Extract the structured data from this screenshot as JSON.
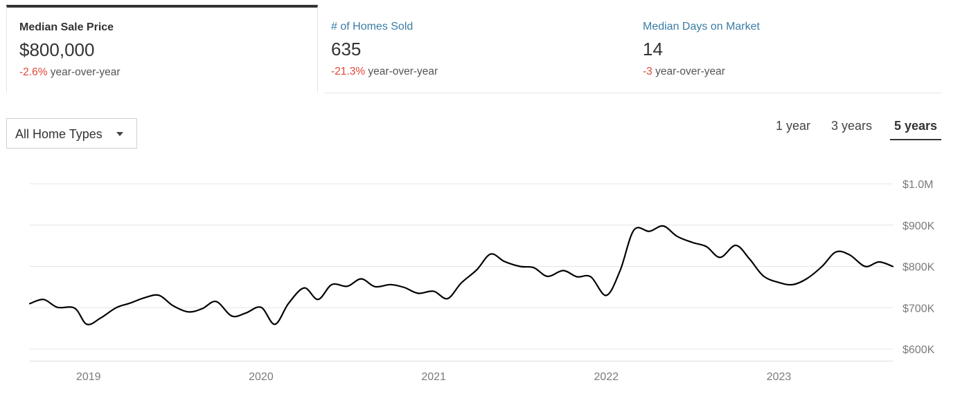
{
  "tabs": [
    {
      "label": "Median Sale Price",
      "value": "$800,000",
      "change": "-2.6%",
      "change_suffix": " year-over-year",
      "active": true
    },
    {
      "label": "# of Homes Sold",
      "value": "635",
      "change": "-21.3%",
      "change_suffix": " year-over-year",
      "active": false
    },
    {
      "label": "Median Days on Market",
      "value": "14",
      "change": "-3",
      "change_suffix": " year-over-year",
      "active": false
    }
  ],
  "filter": {
    "selected": "All Home Types"
  },
  "ranges": {
    "one_year": "1 year",
    "three_years": "3 years",
    "five_years": "5 years",
    "selected": "5 years"
  },
  "colors": {
    "negative": "#e0463a",
    "link": "#3a7ca5",
    "line": "#000000"
  },
  "chart_data": {
    "type": "line",
    "title": "",
    "xlabel": "",
    "ylabel": "",
    "x_ticks": [
      "2019",
      "2020",
      "2021",
      "2022",
      "2023"
    ],
    "x_tick_positions": [
      2019.0,
      2020.0,
      2021.0,
      2022.0,
      2023.0
    ],
    "xlim": [
      2018.66,
      2023.66
    ],
    "ylim": [
      575000,
      1000000
    ],
    "y_ticks": [
      {
        "value": 600000,
        "label": "$600K"
      },
      {
        "value": 700000,
        "label": "$700K"
      },
      {
        "value": 800000,
        "label": "$800K"
      },
      {
        "value": 900000,
        "label": "$900K"
      },
      {
        "value": 1000000,
        "label": "$1.0M"
      }
    ],
    "grid": true,
    "series": [
      {
        "values": [
          {
            "x": 2018.66,
            "y": 710000
          },
          {
            "x": 2018.74,
            "y": 720000
          },
          {
            "x": 2018.82,
            "y": 701000
          },
          {
            "x": 2018.92,
            "y": 699000
          },
          {
            "x": 2018.99,
            "y": 660000
          },
          {
            "x": 2019.07,
            "y": 675000
          },
          {
            "x": 2019.16,
            "y": 700000
          },
          {
            "x": 2019.24,
            "y": 711000
          },
          {
            "x": 2019.33,
            "y": 725000
          },
          {
            "x": 2019.41,
            "y": 730000
          },
          {
            "x": 2019.49,
            "y": 705000
          },
          {
            "x": 2019.58,
            "y": 690000
          },
          {
            "x": 2019.66,
            "y": 698000
          },
          {
            "x": 2019.74,
            "y": 715000
          },
          {
            "x": 2019.83,
            "y": 680000
          },
          {
            "x": 2019.91,
            "y": 687000
          },
          {
            "x": 2020.0,
            "y": 701000
          },
          {
            "x": 2020.08,
            "y": 660000
          },
          {
            "x": 2020.16,
            "y": 711000
          },
          {
            "x": 2020.25,
            "y": 748000
          },
          {
            "x": 2020.33,
            "y": 720000
          },
          {
            "x": 2020.41,
            "y": 756000
          },
          {
            "x": 2020.5,
            "y": 752000
          },
          {
            "x": 2020.58,
            "y": 770000
          },
          {
            "x": 2020.66,
            "y": 751000
          },
          {
            "x": 2020.75,
            "y": 756000
          },
          {
            "x": 2020.83,
            "y": 749000
          },
          {
            "x": 2020.91,
            "y": 735000
          },
          {
            "x": 2021.0,
            "y": 740000
          },
          {
            "x": 2021.08,
            "y": 722000
          },
          {
            "x": 2021.16,
            "y": 760000
          },
          {
            "x": 2021.25,
            "y": 792000
          },
          {
            "x": 2021.33,
            "y": 830000
          },
          {
            "x": 2021.41,
            "y": 812000
          },
          {
            "x": 2021.5,
            "y": 800000
          },
          {
            "x": 2021.58,
            "y": 797000
          },
          {
            "x": 2021.66,
            "y": 776000
          },
          {
            "x": 2021.75,
            "y": 790000
          },
          {
            "x": 2021.83,
            "y": 775000
          },
          {
            "x": 2021.91,
            "y": 775000
          },
          {
            "x": 2022.0,
            "y": 730000
          },
          {
            "x": 2022.08,
            "y": 790000
          },
          {
            "x": 2022.16,
            "y": 888000
          },
          {
            "x": 2022.25,
            "y": 885000
          },
          {
            "x": 2022.33,
            "y": 898000
          },
          {
            "x": 2022.41,
            "y": 873000
          },
          {
            "x": 2022.5,
            "y": 858000
          },
          {
            "x": 2022.58,
            "y": 848000
          },
          {
            "x": 2022.66,
            "y": 822000
          },
          {
            "x": 2022.75,
            "y": 851000
          },
          {
            "x": 2022.83,
            "y": 818000
          },
          {
            "x": 2022.91,
            "y": 777000
          },
          {
            "x": 2023.0,
            "y": 761000
          },
          {
            "x": 2023.08,
            "y": 756000
          },
          {
            "x": 2023.16,
            "y": 770000
          },
          {
            "x": 2023.25,
            "y": 800000
          },
          {
            "x": 2023.33,
            "y": 835000
          },
          {
            "x": 2023.41,
            "y": 828000
          },
          {
            "x": 2023.5,
            "y": 800000
          },
          {
            "x": 2023.58,
            "y": 811000
          },
          {
            "x": 2023.66,
            "y": 800000
          }
        ]
      }
    ]
  }
}
